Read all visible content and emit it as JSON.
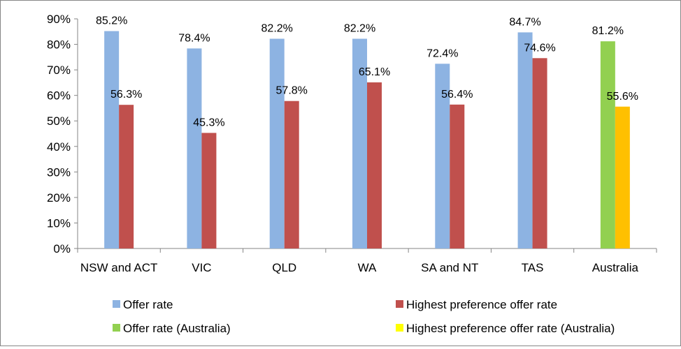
{
  "chart_data": {
    "type": "bar",
    "categories": [
      "NSW and ACT",
      "VIC",
      "QLD",
      "WA",
      "SA and NT",
      "TAS",
      "Australia"
    ],
    "series": [
      {
        "name": "Offer rate",
        "values": [
          85.2,
          78.4,
          82.2,
          82.2,
          72.4,
          84.7,
          null
        ]
      },
      {
        "name": "Highest preference offer rate",
        "values": [
          56.3,
          45.3,
          57.8,
          65.1,
          56.4,
          74.6,
          null
        ]
      },
      {
        "name": "Offer rate (Australia)",
        "values": [
          null,
          null,
          null,
          null,
          null,
          null,
          81.2
        ]
      },
      {
        "name": "Highest preference offer rate (Australia)",
        "values": [
          null,
          null,
          null,
          null,
          null,
          null,
          55.6
        ]
      }
    ],
    "data_labels": [
      [
        "85.2%",
        "78.4%",
        "82.2%",
        "82.2%",
        "72.4%",
        "84.7%",
        ""
      ],
      [
        "56.3%",
        "45.3%",
        "57.8%",
        "65.1%",
        "56.4%",
        "74.6%",
        ""
      ],
      [
        "",
        "",
        "",
        "",
        "",
        "",
        "81.2%"
      ],
      [
        "",
        "",
        "",
        "",
        "",
        "",
        "55.6%"
      ]
    ],
    "y_ticks": [
      "0%",
      "10%",
      "20%",
      "30%",
      "40%",
      "50%",
      "60%",
      "70%",
      "80%",
      "90%"
    ],
    "ylim": [
      0,
      90
    ],
    "title": "",
    "xlabel": "",
    "ylabel": "",
    "grid": false,
    "legend_position": "bottom",
    "colors": {
      "Offer rate": "#8DB3E2",
      "Highest preference offer rate": "#C0504D",
      "Offer rate (Australia)": "#92D050",
      "Highest preference offer rate (Australia)": "#FFC000",
      "legend_Highest preference offer rate (Australia)": "#FFFF00"
    }
  }
}
